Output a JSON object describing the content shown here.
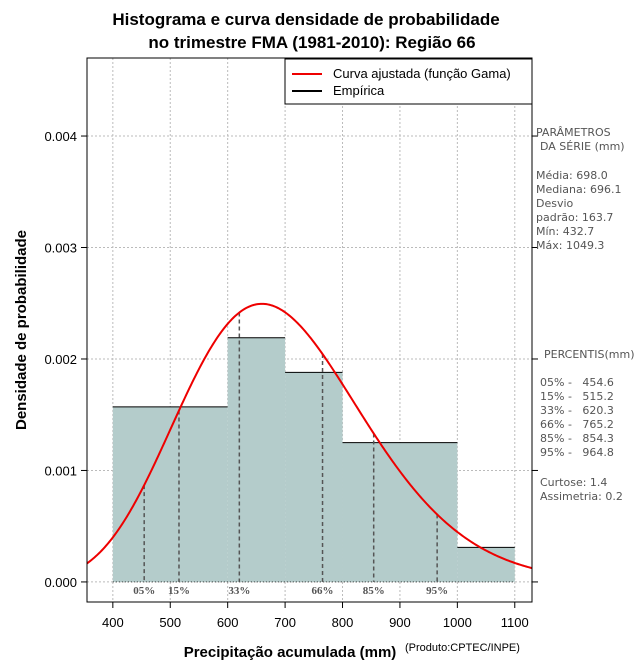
{
  "chart_data": {
    "type": "bar",
    "title": [
      "Histograma e curva densidade de probabilidade",
      "no trimestre FMA (1981-2010): Região 66"
    ],
    "xlabel": "Precipitação acumulada (mm)",
    "ylabel": "Densidade de probabilidade",
    "credit": "(Produto:CPTEC/INPE)",
    "xlim": [
      355,
      1130
    ],
    "ylim": [
      -0.00018,
      0.0047
    ],
    "xticks": [
      "400",
      "500",
      "600",
      "700",
      "800",
      "900",
      "1000",
      "1100"
    ],
    "xtick_values": [
      400,
      500,
      600,
      700,
      800,
      900,
      1000,
      1100
    ],
    "yticks": [
      "0.000",
      "0.001",
      "0.002",
      "0.003",
      "0.004"
    ],
    "ytick_values": [
      0,
      0.001,
      0.002,
      0.003,
      0.004
    ],
    "grid": true,
    "histogram": {
      "name": "Empírica",
      "bins": [
        {
          "from": 400,
          "to": 600,
          "density": 0.00157
        },
        {
          "from": 600,
          "to": 700,
          "density": 0.00219
        },
        {
          "from": 700,
          "to": 800,
          "density": 0.00188
        },
        {
          "from": 800,
          "to": 1000,
          "density": 0.00125
        },
        {
          "from": 1000,
          "to": 1100,
          "density": 0.00031
        }
      ],
      "color": "#b4cccb"
    },
    "curve": {
      "name": "Curva ajustada (função Gama)",
      "color": "#ee0000",
      "mean": 698.0,
      "sd": 163.7
    },
    "legend": {
      "position": "top-right",
      "entries": [
        {
          "label": "Curva ajustada (função Gama)",
          "color": "#ee0000"
        },
        {
          "label": "Empírica",
          "color": "#000000"
        }
      ]
    },
    "percentile_lines": [
      {
        "label": "05%",
        "value": 454.6
      },
      {
        "label": "15%",
        "value": 515.2
      },
      {
        "label": "33%",
        "value": 620.3
      },
      {
        "label": "66%",
        "value": 765.2
      },
      {
        "label": "85%",
        "value": 854.3
      },
      {
        "label": "95%",
        "value": 964.8
      }
    ],
    "side_panel": {
      "params_title": [
        "PARÂMETROS",
        "DA SÉRIE (mm)"
      ],
      "params": [
        "Média:  698.0",
        "Mediana:  696.1",
        "Desvio",
        "padrão:  163.7",
        "Mín:  432.7",
        "Máx:  1049.3"
      ],
      "percentis_title": "PERCENTIS(mm)",
      "percentis": [
        "05% -   454.6",
        "15% -   515.2",
        "33% -   620.3",
        "66% -   765.2",
        "85% -   854.3",
        "95% -   964.8"
      ],
      "stats": [
        "Curtose:  1.4",
        "Assimetria:  0.2"
      ]
    }
  }
}
